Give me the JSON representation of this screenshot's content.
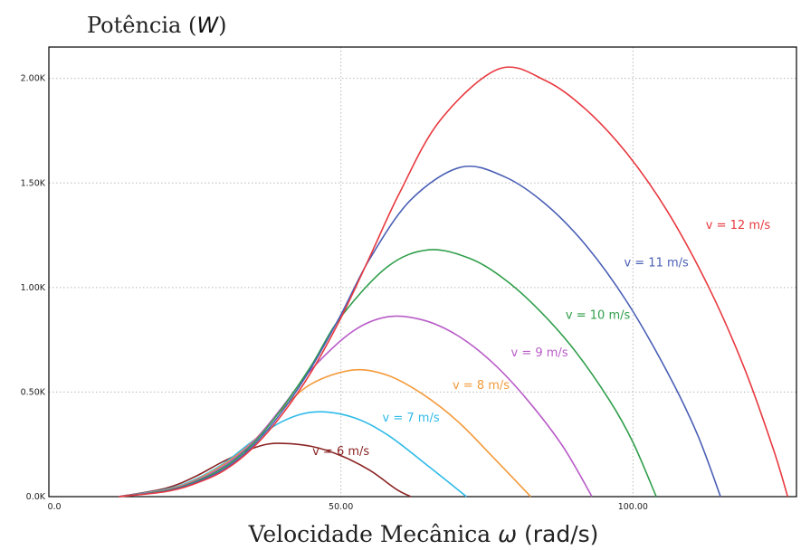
{
  "chart_data": {
    "type": "line",
    "title": "",
    "ylabel": {
      "prefix": "Potência (",
      "unit": "W",
      "suffix": ")"
    },
    "xlabel": {
      "prefix": "Velocidade Mecânica ",
      "symbol": "ω",
      "unit": " (rad/s)"
    },
    "xlim": [
      0,
      128
    ],
    "ylim": [
      0,
      2150
    ],
    "x_ticks": [
      {
        "value": 0,
        "label": "0.0"
      },
      {
        "value": 50,
        "label": "50.00"
      },
      {
        "value": 100,
        "label": "100.00"
      }
    ],
    "y_ticks": [
      {
        "value": 0,
        "label": "0.0K"
      },
      {
        "value": 500,
        "label": "0.50K"
      },
      {
        "value": 1000,
        "label": "1.00K"
      },
      {
        "value": 1500,
        "label": "1.50K"
      },
      {
        "value": 2000,
        "label": "2.00K"
      }
    ],
    "grid": true,
    "series": [
      {
        "name": "v = 6 m/s",
        "color": "#8b2424",
        "label_at": [
          50,
          200
        ],
        "x": [
          12,
          20,
          25,
          30,
          35,
          39,
          45,
          50,
          55,
          59.5,
          62
        ],
        "y": [
          0,
          40,
          95,
          170,
          232,
          255,
          240,
          196,
          125,
          35,
          0
        ]
      },
      {
        "name": "v = 7 m/s",
        "color": "#2ebae8",
        "label_at": [
          62,
          360
        ],
        "x": [
          12,
          20,
          25,
          30,
          35,
          40,
          45.5,
          52,
          58,
          65,
          71.5
        ],
        "y": [
          0,
          35,
          82,
          160,
          268,
          360,
          405,
          380,
          295,
          145,
          0
        ]
      },
      {
        "name": "v = 8 m/s",
        "color": "#f39a3a",
        "label_at": [
          74,
          515
        ],
        "x": [
          12,
          20,
          25,
          30,
          35,
          40,
          45,
          52,
          58,
          64,
          70,
          76,
          82.5
        ],
        "y": [
          0,
          32,
          78,
          155,
          265,
          420,
          540,
          605,
          580,
          490,
          360,
          190,
          0
        ]
      },
      {
        "name": "v = 9 m/s",
        "color": "#b85cc7",
        "label_at": [
          84,
          670
        ],
        "x": [
          12,
          20,
          25,
          30,
          35,
          40,
          45,
          52,
          58,
          64,
          70,
          76,
          82,
          88,
          93
        ],
        "y": [
          0,
          30,
          74,
          148,
          262,
          430,
          610,
          790,
          860,
          845,
          770,
          640,
          460,
          240,
          0
        ]
      },
      {
        "name": "v = 10 m/s",
        "color": "#2f9e4a",
        "label_at": [
          94,
          850
        ],
        "x": [
          12,
          20,
          25,
          30,
          35,
          40,
          45,
          50,
          58,
          65,
          72,
          78,
          84,
          90,
          96,
          100,
          104
        ],
        "y": [
          0,
          28,
          70,
          140,
          255,
          425,
          630,
          860,
          1100,
          1180,
          1140,
          1040,
          890,
          700,
          460,
          260,
          0
        ]
      },
      {
        "name": "v = 11 m/s",
        "color": "#4a5fb5",
        "label_at": [
          104,
          1100
        ],
        "x": [
          12,
          20,
          25,
          30,
          35,
          40,
          45,
          50,
          55,
          62,
          70.5,
          78,
          85,
          92,
          99,
          106,
          111,
          115
        ],
        "y": [
          0,
          26,
          66,
          132,
          245,
          410,
          620,
          870,
          1140,
          1420,
          1575,
          1530,
          1400,
          1200,
          930,
          590,
          300,
          0
        ]
      },
      {
        "name": "v = 12 m/s",
        "color": "#e8393f",
        "label_at": [
          118,
          1280
        ],
        "x": [
          12,
          20,
          25,
          30,
          35,
          40,
          45,
          50,
          55,
          60,
          67,
          77,
          85,
          92,
          99,
          106,
          113,
          119,
          124,
          126.5
        ],
        "y": [
          0,
          24,
          62,
          125,
          235,
          395,
          600,
          855,
          1150,
          1450,
          1800,
          2045,
          1990,
          1850,
          1640,
          1360,
          1000,
          620,
          230,
          0
        ]
      }
    ]
  }
}
